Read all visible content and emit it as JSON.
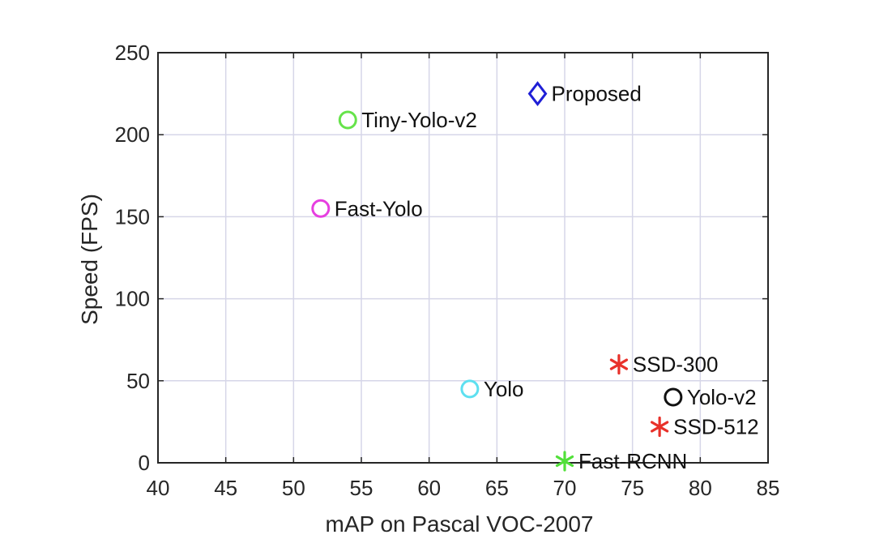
{
  "chart_data": {
    "type": "scatter",
    "title": "",
    "xlabel": "mAP on Pascal VOC-2007",
    "ylabel": "Speed (FPS)",
    "xlim": [
      40,
      85
    ],
    "ylim": [
      0,
      250
    ],
    "xticks": [
      40,
      45,
      50,
      55,
      60,
      65,
      70,
      75,
      80,
      85
    ],
    "yticks": [
      0,
      50,
      100,
      150,
      200,
      250
    ],
    "grid": true,
    "points": [
      {
        "label": "Proposed",
        "x": 68,
        "y": 225,
        "marker": "diamond",
        "color": "#1f1fd6"
      },
      {
        "label": "Tiny-Yolo-v2",
        "x": 54,
        "y": 209,
        "marker": "circle",
        "color": "#66e34a"
      },
      {
        "label": "Fast-Yolo",
        "x": 52,
        "y": 155,
        "marker": "circle",
        "color": "#e63ee0"
      },
      {
        "label": "SSD-300",
        "x": 74,
        "y": 60,
        "marker": "asterisk",
        "color": "#e8312a"
      },
      {
        "label": "Yolo",
        "x": 63,
        "y": 45,
        "marker": "circle",
        "color": "#5ee0f0"
      },
      {
        "label": "Yolo-v2",
        "x": 78,
        "y": 40,
        "marker": "circle",
        "color": "#111111"
      },
      {
        "label": "SSD-512",
        "x": 77,
        "y": 22,
        "marker": "asterisk",
        "color": "#e8312a"
      },
      {
        "label": "Fast-RCNN",
        "x": 70,
        "y": 1,
        "marker": "asterisk",
        "color": "#52e03a"
      }
    ]
  }
}
